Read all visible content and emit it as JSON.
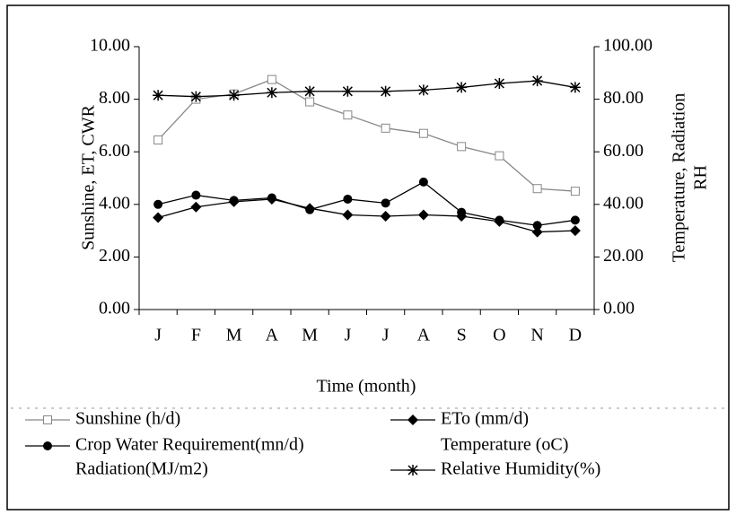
{
  "chart_data": {
    "type": "line",
    "xlabel": "Time (month)",
    "ylabel": "Sunshine, ET, CWR",
    "y2label": [
      "Temperature, Radiation",
      "RH"
    ],
    "categories": [
      "J",
      "F",
      "M",
      "A",
      "M",
      "J",
      "J",
      "A",
      "S",
      "O",
      "N",
      "D"
    ],
    "ylim": [
      0,
      10
    ],
    "yticks": [
      {
        "value": 0,
        "label": "0.00"
      },
      {
        "value": 2,
        "label": "2.00"
      },
      {
        "value": 4,
        "label": "4.00"
      },
      {
        "value": 6,
        "label": "6.00"
      },
      {
        "value": 8,
        "label": "8.00"
      },
      {
        "value": 10,
        "label": "10.00"
      }
    ],
    "y2lim": [
      0,
      100
    ],
    "y2ticks": [
      {
        "value": 0,
        "label": "0.00"
      },
      {
        "value": 20,
        "label": "20.00"
      },
      {
        "value": 40,
        "label": "40.00"
      },
      {
        "value": 60,
        "label": "60.00"
      },
      {
        "value": 80,
        "label": "80.00"
      },
      {
        "value": 100,
        "label": "100.00"
      }
    ],
    "series": [
      {
        "name": "Sunshine (h/d)",
        "color": "#888888",
        "marker": "square",
        "values": [
          6.45,
          8.0,
          8.2,
          8.75,
          7.9,
          7.4,
          6.9,
          6.7,
          6.2,
          5.85,
          4.6,
          4.5
        ]
      },
      {
        "name": "ETo (mm/d)",
        "color": "#000000",
        "marker": "diamond",
        "values": [
          3.5,
          3.9,
          4.1,
          4.2,
          3.85,
          3.6,
          3.55,
          3.6,
          3.55,
          3.35,
          2.95,
          3.0
        ]
      },
      {
        "name": "Crop Water Requirement(mn/d)",
        "color": "#000000",
        "marker": "circle",
        "values": [
          4.0,
          4.35,
          4.15,
          4.25,
          3.8,
          4.2,
          4.05,
          4.85,
          3.7,
          3.4,
          3.2,
          3.4
        ]
      },
      {
        "name": "Relative Humidity(%)",
        "color": "#000000",
        "marker": "star",
        "axis": "y2",
        "values": [
          81.5,
          81,
          81.5,
          82.5,
          83,
          83,
          83,
          83.5,
          84.5,
          86,
          87,
          84.5
        ]
      }
    ],
    "legend_extra": [
      "Temperature (oC)",
      "Radiation(MJ/m2)"
    ]
  }
}
